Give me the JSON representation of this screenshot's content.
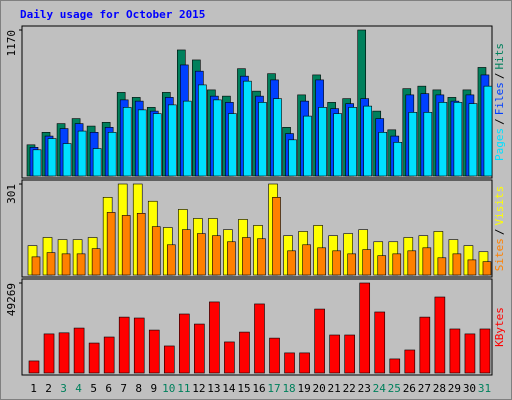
{
  "chart_data": {
    "type": "bar",
    "title": "Daily usage for October 2015",
    "title_color": "#0000ff",
    "categories": [
      "1",
      "2",
      "3",
      "4",
      "5",
      "6",
      "7",
      "8",
      "9",
      "10",
      "11",
      "12",
      "13",
      "14",
      "15",
      "16",
      "17",
      "18",
      "19",
      "20",
      "21",
      "22",
      "23",
      "24",
      "25",
      "26",
      "27",
      "28",
      "29",
      "30",
      "31"
    ],
    "category_colors": [
      "#000000",
      "#000000",
      "#00805c",
      "#00805c",
      "#000000",
      "#000000",
      "#000000",
      "#000000",
      "#000000",
      "#00805c",
      "#00805c",
      "#000000",
      "#000000",
      "#000000",
      "#000000",
      "#000000",
      "#00805c",
      "#00805c",
      "#000000",
      "#000000",
      "#000000",
      "#000000",
      "#000000",
      "#00805c",
      "#00805c",
      "#000000",
      "#000000",
      "#000000",
      "#000000",
      "#000000",
      "#00805c"
    ],
    "legend_separator": "/",
    "panels": [
      {
        "ylim": [
          0,
          1170
        ],
        "yticks": [
          1170
        ],
        "series": [
          {
            "name": "Hits",
            "color": "#00805c",
            "values": [
              250,
              350,
              420,
              460,
              400,
              430,
              670,
              630,
              550,
              670,
              1010,
              930,
              690,
              640,
              860,
              680,
              820,
              390,
              650,
              810,
              590,
              620,
              1170,
              520,
              370,
              700,
              720,
              690,
              630,
              690,
              870
            ]
          },
          {
            "name": "Files",
            "color": "#0040ff",
            "values": [
              230,
              320,
              380,
              420,
              350,
              390,
              610,
              600,
              520,
              630,
              890,
              840,
              640,
              590,
              800,
              640,
              770,
              340,
              600,
              770,
              540,
              580,
              620,
              460,
              320,
              650,
              660,
              650,
              600,
              650,
              810
            ]
          },
          {
            "name": "Pages",
            "color": "#00e0ff",
            "values": [
              210,
              300,
              260,
              360,
              220,
              350,
              550,
              530,
              500,
              570,
              600,
              730,
              610,
              500,
              760,
              590,
              620,
              290,
              480,
              550,
              500,
              550,
              560,
              350,
              270,
              510,
              510,
              590,
              590,
              580,
              720
            ]
          }
        ]
      },
      {
        "ylim": [
          0,
          301
        ],
        "yticks": [
          301
        ],
        "series": [
          {
            "name": "Visits",
            "color": "#ffff00",
            "values": [
              97,
              124,
              117,
              117,
              124,
              257,
              301,
              301,
              244,
              157,
              217,
              187,
              187,
              150,
              184,
              164,
              301,
              130,
              144,
              164,
              130,
              137,
              150,
              110,
              110,
              124,
              130,
              144,
              117,
              97,
              77
            ]
          },
          {
            "name": "Sites",
            "color": "#ff8000",
            "values": [
              60,
              74,
              70,
              70,
              87,
              207,
              197,
              204,
              160,
              100,
              150,
              137,
              130,
              110,
              124,
              120,
              257,
              80,
              100,
              90,
              80,
              70,
              84,
              64,
              70,
              80,
              90,
              57,
              70,
              50,
              44
            ]
          }
        ]
      },
      {
        "ylim": [
          0,
          49269
        ],
        "yticks": [
          49269
        ],
        "series": [
          {
            "name": "KBytes",
            "color": "#ff0000",
            "values": [
              6600,
              21400,
              22000,
              24600,
              16400,
              19700,
              30600,
              30100,
              23500,
              14800,
              32300,
              26800,
              38900,
              17000,
              22400,
              37800,
              19100,
              11000,
              11000,
              35000,
              20800,
              20800,
              49269,
              33400,
              7700,
              12600,
              30600,
              41600,
              24100,
              21400,
              24100
            ]
          }
        ]
      }
    ]
  }
}
